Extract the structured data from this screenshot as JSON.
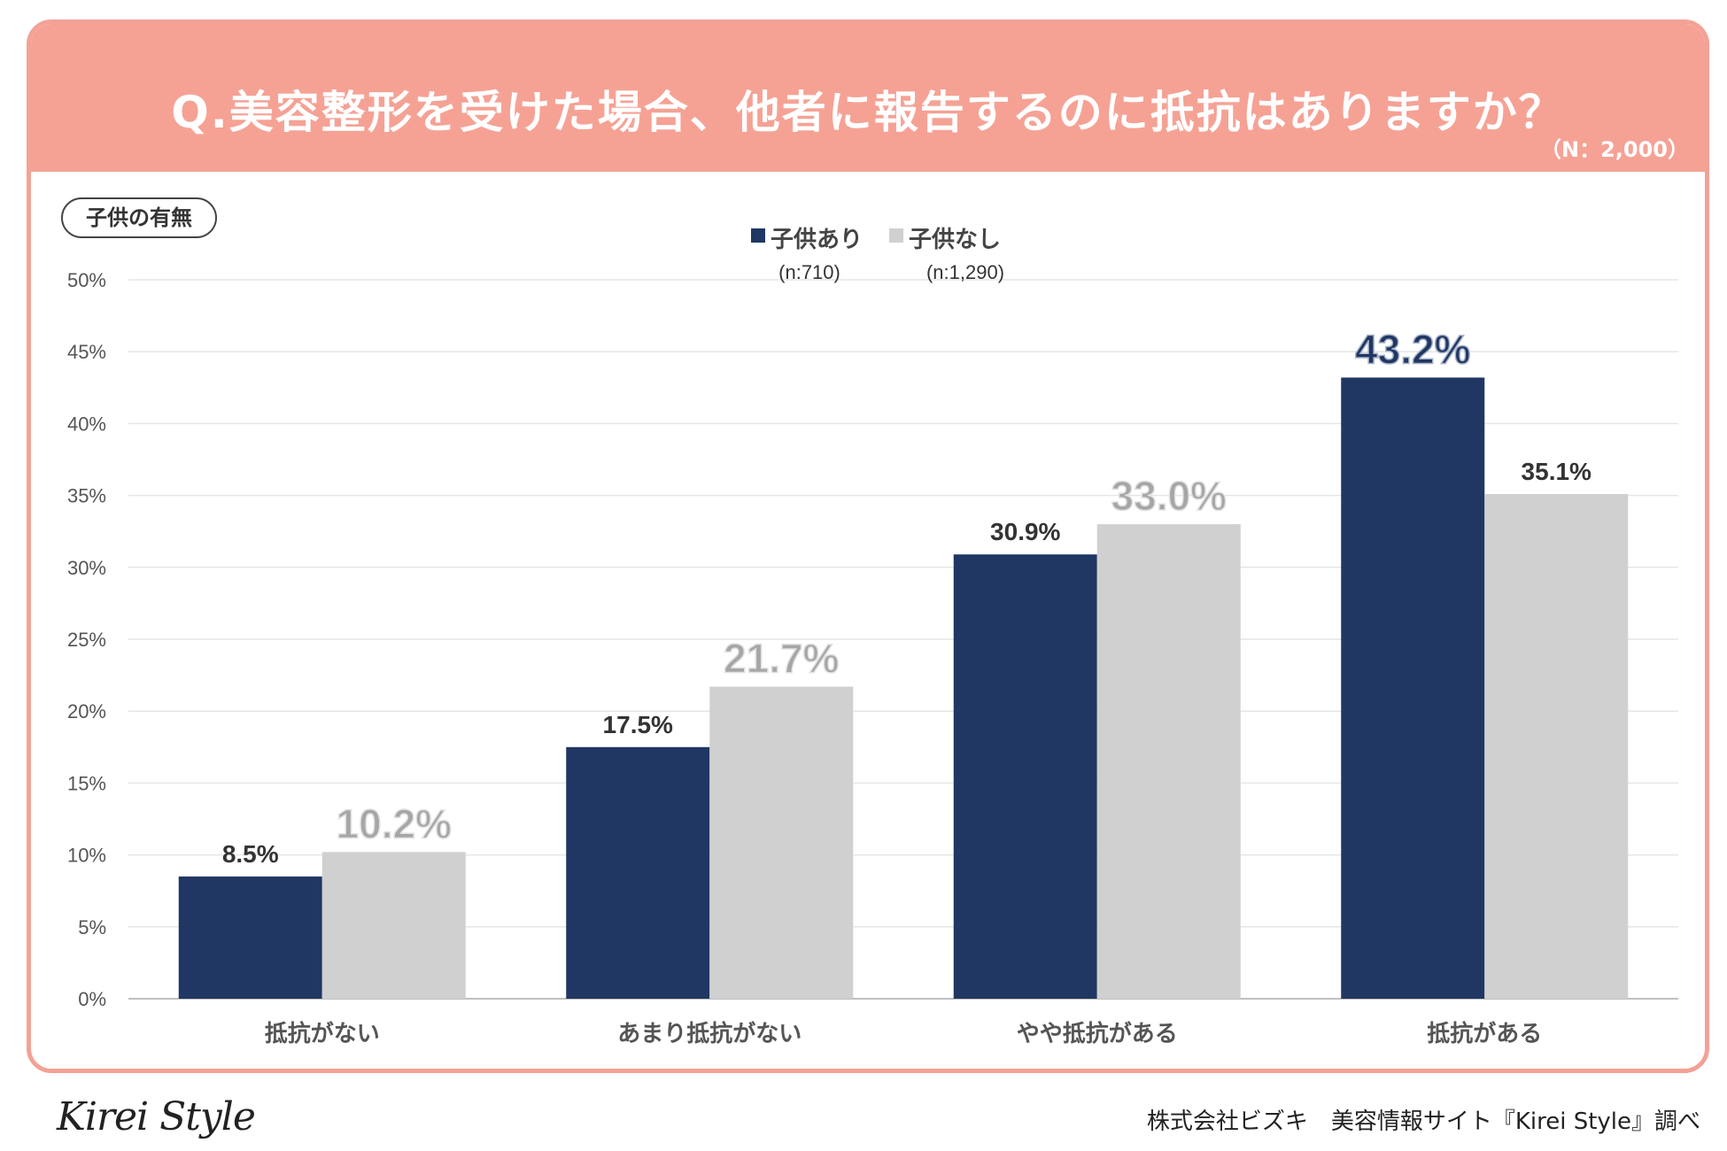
{
  "header": {
    "title": "Q.美容整形を受けた場合、他者に報告するのに抵抗はありますか？",
    "sample_size": "（N：2,000）"
  },
  "group_tag": "子供の有無",
  "footer": {
    "logo": "Kirei Style",
    "credit": "株式会社ビズキ　美容情報サイト『Kirei Style』調べ"
  },
  "colors": {
    "with_children": "#203763",
    "without_children": "#d0d0d0",
    "header_bg": "#f5a295"
  },
  "chart_data": {
    "type": "bar",
    "title": "Q.美容整形を受けた場合、他者に報告するのに抵抗はありますか？",
    "categories": [
      "抵抗がない",
      "あまり抵抗がない",
      "やや抵抗がある",
      "抵抗がある"
    ],
    "series": [
      {
        "name": "子供あり",
        "n_label": "(n:710)",
        "values": [
          8.5,
          17.5,
          30.9,
          43.2
        ],
        "value_labels": [
          "8.5%",
          "17.5%",
          "30.9%",
          "43.2%"
        ],
        "highlight_index": 3
      },
      {
        "name": "子供なし",
        "n_label": "(n:1,290)",
        "values": [
          10.2,
          21.7,
          33.0,
          35.1
        ],
        "value_labels": [
          "10.2%",
          "21.7%",
          "33.0%",
          "35.1%"
        ],
        "highlight_index": [
          0,
          1,
          2
        ]
      }
    ],
    "ylim": [
      0,
      50
    ],
    "yticks": [
      0,
      5,
      10,
      15,
      20,
      25,
      30,
      35,
      40,
      45,
      50
    ],
    "ytick_labels": [
      "0%",
      "5%",
      "10%",
      "15%",
      "20%",
      "25%",
      "30%",
      "35%",
      "40%",
      "45%",
      "50%"
    ],
    "xlabel": "",
    "ylabel": "",
    "legend": "top-center",
    "grid": true
  }
}
